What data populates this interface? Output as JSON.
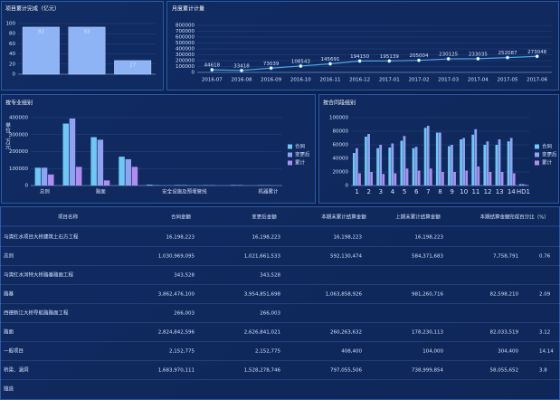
{
  "chart_data": [
    {
      "type": "bar",
      "title": "项目累计完成（亿元）",
      "values": [
        93,
        93,
        27
      ],
      "color": "#8fb4f6",
      "ylim": [
        0,
        100
      ],
      "yticks": [
        0,
        20,
        40,
        60,
        80,
        100
      ]
    },
    {
      "type": "line",
      "title": "月度累计计量",
      "categories": [
        "2016-07",
        "2016-08",
        "2016-09",
        "2016-10",
        "2016-11",
        "2016-12",
        "2017-01",
        "2017-02",
        "2017-03",
        "2017-04",
        "2017-05",
        "2017-06"
      ],
      "values": [
        44618,
        33418,
        73039,
        108543,
        145691,
        194150,
        195139,
        205004,
        230125,
        233035,
        252087,
        273048
      ],
      "color": "#4fa6e8",
      "ylim": [
        0,
        800000
      ],
      "yticks": [
        0,
        100000,
        200000,
        300000,
        400000,
        500000,
        600000,
        700000,
        800000
      ]
    },
    {
      "type": "grouped_bar",
      "title": "按专业组别",
      "y_label": "单位：万元",
      "categories": [
        "总则",
        null,
        "路面",
        null,
        null,
        "安全设施及预埋管线",
        null,
        null,
        "机器累计"
      ],
      "series": [
        {
          "name": "合同",
          "color": "#6ec8f4",
          "values": [
            105000,
            365000,
            285000,
            170000,
            5000,
            3000,
            2000,
            3000,
            2000
          ]
        },
        {
          "name": "变更后",
          "color": "#8fa3f2",
          "values": [
            105000,
            395000,
            270000,
            155000,
            2000,
            3000,
            2000,
            3000,
            2000
          ]
        },
        {
          "name": "累计",
          "color": "#b08ef0",
          "values": [
            65000,
            110000,
            30000,
            110000,
            0,
            0,
            0,
            0,
            0
          ]
        }
      ],
      "ylim": [
        0,
        400000
      ],
      "yticks": [
        0,
        100000,
        200000,
        300000,
        400000
      ]
    },
    {
      "type": "grouped_bar",
      "title": "按合同段组别",
      "categories": [
        "1",
        "2",
        "3",
        "4",
        "5",
        "6",
        "7",
        "8",
        "9",
        "10",
        "11",
        "12",
        "13",
        "14",
        "HD1"
      ],
      "series": [
        {
          "name": "合同",
          "color": "#6ec8f4",
          "values": [
            48000,
            72000,
            55000,
            56000,
            66000,
            55000,
            85000,
            78000,
            58000,
            68000,
            75000,
            60000,
            60000,
            65000,
            2000
          ]
        },
        {
          "name": "变更后",
          "color": "#8fa3f2",
          "values": [
            55000,
            76000,
            60000,
            62000,
            73000,
            57000,
            88000,
            78000,
            60000,
            70000,
            83000,
            65000,
            68000,
            70000,
            2000
          ]
        },
        {
          "name": "累计",
          "color": "#b08ef0",
          "values": [
            18000,
            20000,
            17000,
            18000,
            25000,
            22000,
            25000,
            20000,
            20000,
            22000,
            28000,
            20000,
            20000,
            18000,
            1000
          ]
        }
      ],
      "ylim": [
        0,
        100000
      ],
      "yticks": [
        0,
        20000,
        40000,
        60000,
        80000,
        100000
      ]
    }
  ],
  "table": {
    "header": [
      "项目名称",
      "合同金额",
      "变更后金额",
      "本期末累计结算金额",
      "上期末累计结算金额",
      "本期结算金额",
      "完成百分比（%）"
    ],
    "rows": [
      [
        "马清红水项目大桥建筑土石方工程",
        "16,198,223",
        "16,198,223",
        "16,198,223",
        "16,198,223"
      ],
      [
        "总则",
        "1,030,969,095",
        "1,021,661,533",
        "592,130,474",
        "584,371,683",
        "7,758,791",
        "0.76"
      ],
      [
        "马清红水河特大桥路基路面工程",
        "343,528",
        "343,528"
      ],
      [
        "路基",
        "3,862,476,100",
        "3,954,851,698",
        "1,063,858,926",
        "981,260,716",
        "82,598,210",
        "2.09"
      ],
      [
        "西德新江大桥导航路路面工程",
        "266,003",
        "266,003"
      ],
      [
        "路面",
        "2,824,842,596",
        "2,626,841,021",
        "260,263,632",
        "178,230,113",
        "82,033,519",
        "3.12"
      ],
      [
        "一般项目",
        "2,152,775",
        "2,152,775",
        "408,400",
        "104,000",
        "304,400",
        "14.14"
      ],
      [
        "桥梁、涵洞",
        "1,683,970,111",
        "1,528,278,746",
        "797,055,506",
        "738,999,854",
        "58,055,652",
        "3.8"
      ],
      [
        "隧道"
      ]
    ]
  }
}
